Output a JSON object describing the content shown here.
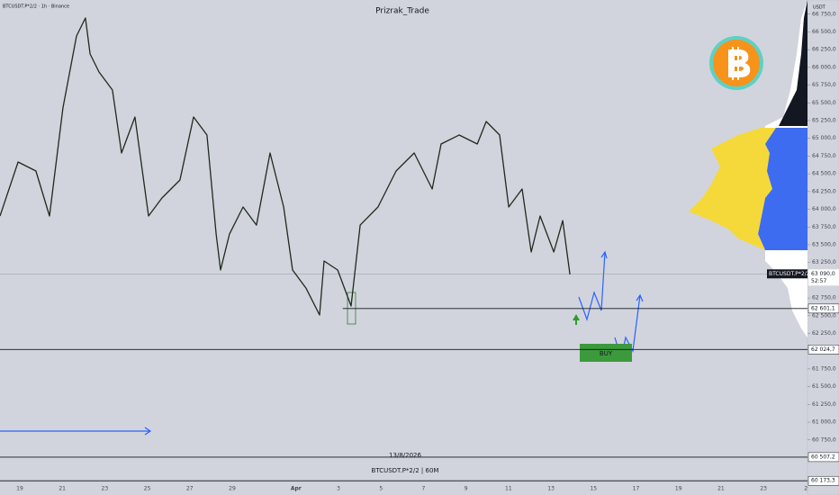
{
  "header": {
    "symbol": "BTCUSDT.P*2/2 · 1h · Binance",
    "author": "Prizrak_Trade",
    "currency": "USDT"
  },
  "chart_data": {
    "type": "line",
    "color": "#1e2a1e",
    "x": [
      -0.93,
      -0.08,
      0.76,
      1.4,
      2.03,
      2.67,
      3.09,
      3.31,
      3.73,
      4.36,
      4.79,
      5.42,
      6.06,
      6.69,
      7.54,
      8.18,
      8.81,
      9.24,
      9.45,
      9.87,
      10.51,
      11.14,
      11.78,
      12.42,
      12.84,
      13.47,
      14.11,
      14.32,
      14.96,
      15.59,
      16.02,
      16.86,
      17.71,
      18.56,
      19.41,
      19.83,
      20.68,
      21.53,
      21.95,
      22.58,
      23.01,
      23.64,
      24.07,
      24.49,
      25.13,
      25.55,
      25.89
    ],
    "values": [
      63905,
      64667,
      64540,
      63905,
      65428,
      66443,
      66696,
      66189,
      65935,
      65681,
      64794,
      65301,
      63905,
      64159,
      64413,
      65301,
      65047,
      63651,
      63144,
      63651,
      64032,
      63778,
      64794,
      64032,
      63144,
      62890,
      62510,
      63271,
      63144,
      62637,
      63778,
      64032,
      64540,
      64794,
      64286,
      64921,
      65047,
      64921,
      65238,
      65047,
      64032,
      64286,
      63398,
      63905,
      63398,
      63841,
      63081
    ],
    "xlim": [
      -0.93,
      37.07
    ],
    "ylim": [
      60100,
      66950
    ],
    "xticks": [
      {
        "value": 0,
        "label": "19"
      },
      {
        "value": 2,
        "label": "21"
      },
      {
        "value": 4,
        "label": "23"
      },
      {
        "value": 6,
        "label": "25"
      },
      {
        "value": 8,
        "label": "27"
      },
      {
        "value": 10,
        "label": "29"
      },
      {
        "value": 13,
        "label": "Apr"
      },
      {
        "value": 15,
        "label": "3"
      },
      {
        "value": 17,
        "label": "5"
      },
      {
        "value": 19,
        "label": "7"
      },
      {
        "value": 21,
        "label": "9"
      },
      {
        "value": 23,
        "label": "11"
      },
      {
        "value": 25,
        "label": "13"
      },
      {
        "value": 27,
        "label": "15"
      },
      {
        "value": 29,
        "label": "17"
      },
      {
        "value": 31,
        "label": "19"
      },
      {
        "value": 33,
        "label": "21"
      },
      {
        "value": 35,
        "label": "23"
      },
      {
        "value": 37,
        "label": "2"
      }
    ],
    "yticks": [
      {
        "value": 60750,
        "label": "60 750,0"
      },
      {
        "value": 61000,
        "label": "61 000,0"
      },
      {
        "value": 61250,
        "label": "61 250,0"
      },
      {
        "value": 61500,
        "label": "61 500,0"
      },
      {
        "value": 61750,
        "label": "61 750,0"
      },
      {
        "value": 62250,
        "label": "62 250,0"
      },
      {
        "value": 62500,
        "label": "62 500,0"
      },
      {
        "value": 62750,
        "label": "62 750,0"
      },
      {
        "value": 63250,
        "label": "63 250,0"
      },
      {
        "value": 63500,
        "label": "63 500,0"
      },
      {
        "value": 63750,
        "label": "63 750,0"
      },
      {
        "value": 64000,
        "label": "64 000,0"
      },
      {
        "value": 64250,
        "label": "64 250,0"
      },
      {
        "value": 64500,
        "label": "64 500,0"
      },
      {
        "value": 64750,
        "label": "64 750,0"
      },
      {
        "value": 65000,
        "label": "65 000,0"
      },
      {
        "value": 65250,
        "label": "65 250,0"
      },
      {
        "value": 65500,
        "label": "65 500,0"
      },
      {
        "value": 65750,
        "label": "65 750,0"
      },
      {
        "value": 66000,
        "label": "66 000,0"
      },
      {
        "value": 66250,
        "label": "66 250,0"
      },
      {
        "value": 66500,
        "label": "66 500,0"
      },
      {
        "value": 66750,
        "label": "66 750,0"
      }
    ],
    "levels": [
      {
        "value": 62601.1,
        "label": "62 601,1",
        "from": 15.2
      },
      {
        "value": 62024.7,
        "label": "62 024,7",
        "from": -0.93
      },
      {
        "value": 60507.2,
        "label": "60 507,2",
        "from": -0.93
      },
      {
        "value": 60173.3,
        "label": "60 173,3",
        "from": -0.93
      }
    ],
    "current_price": {
      "value": 63090,
      "label": "63 090,0",
      "symbol": "BTCUSDT.P*2/2",
      "countdown": "52:57"
    },
    "annotations": {
      "buy": "BUY",
      "date": "13/8/2026",
      "footer": "BTCUSDT.P*2/2 | 60M"
    }
  }
}
